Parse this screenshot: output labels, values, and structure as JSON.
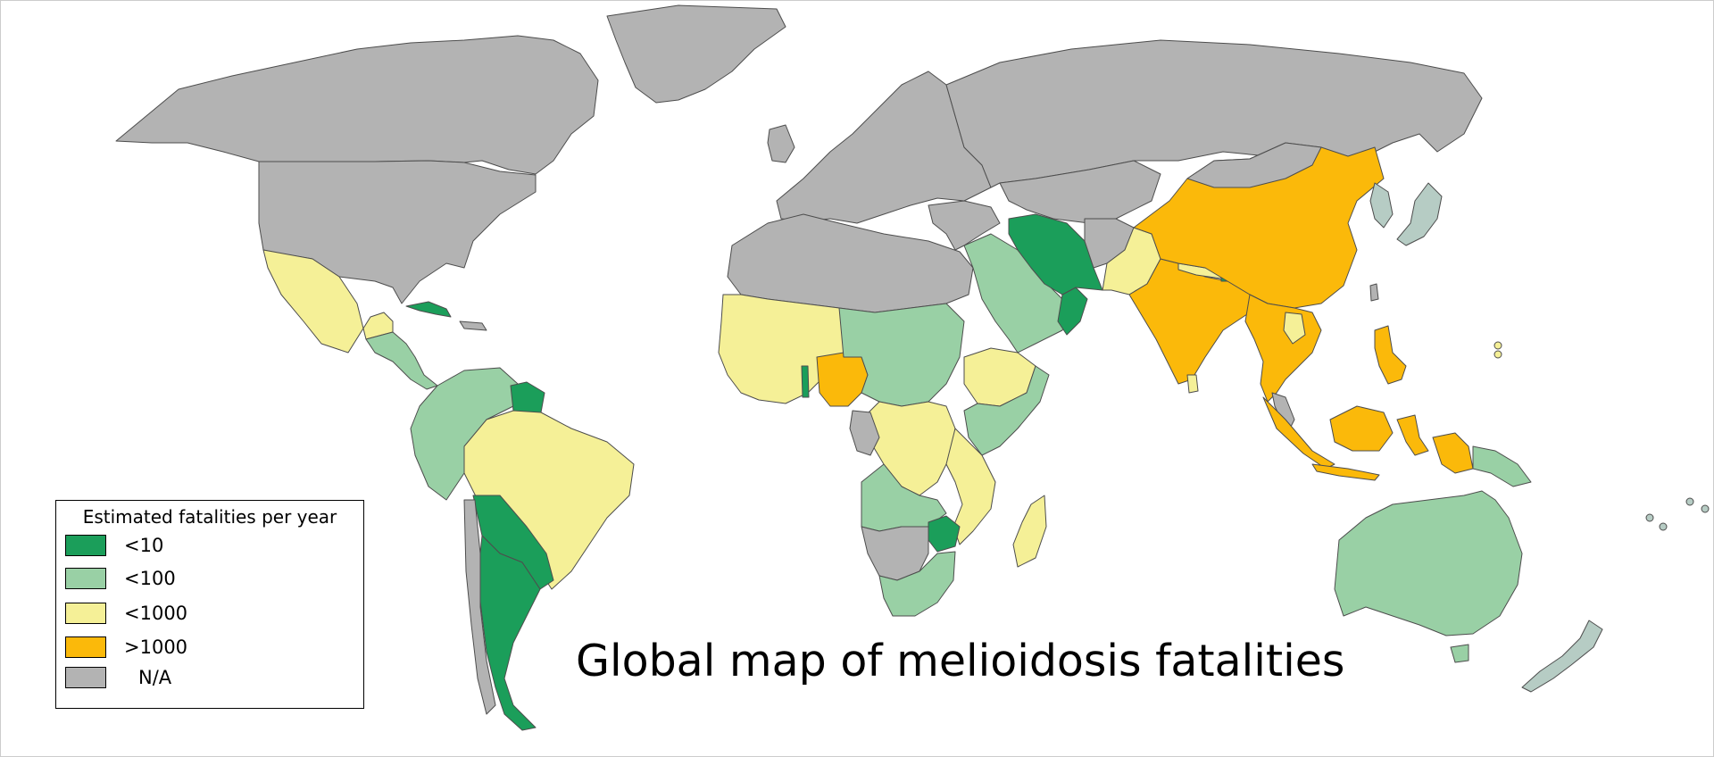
{
  "map": {
    "title": "Global map of melioidosis fatalities",
    "legend": {
      "title": "Estimated fatalities per year",
      "items": [
        {
          "label": "<10",
          "color": "#1b9e5a",
          "category": "lt10"
        },
        {
          "label": "<100",
          "color": "#99d0a5",
          "category": "lt100"
        },
        {
          "label": "<1000",
          "color": "#f5f097",
          "category": "lt1000"
        },
        {
          "label": ">1000",
          "color": "#fbb90a",
          "category": "gt1000"
        },
        {
          "label": "N/A",
          "color": "#b3b3b3",
          "category": "na"
        }
      ]
    },
    "colors": {
      "background": "#ffffff",
      "border": "#4d4d4d",
      "na": "#b3b3b3",
      "minor_region": "#b6ccc4"
    },
    "regions": [
      {
        "name": "Greenland",
        "category": "na"
      },
      {
        "name": "Canada",
        "category": "na"
      },
      {
        "name": "United States",
        "category": "na"
      },
      {
        "name": "Mexico",
        "category": "lt1000"
      },
      {
        "name": "Central America",
        "category": "lt100"
      },
      {
        "name": "Cuba",
        "category": "lt10"
      },
      {
        "name": "Colombia / Venezuela / Ecuador / Peru",
        "category": "lt100"
      },
      {
        "name": "Guyana / Suriname / French Guiana",
        "category": "lt10"
      },
      {
        "name": "Brazil",
        "category": "lt1000"
      },
      {
        "name": "Bolivia / Paraguay / Uruguay",
        "category": "lt10"
      },
      {
        "name": "Argentina",
        "category": "lt10"
      },
      {
        "name": "Chile",
        "category": "na"
      },
      {
        "name": "Europe",
        "category": "na"
      },
      {
        "name": "Russia",
        "category": "na"
      },
      {
        "name": "North Africa",
        "category": "na"
      },
      {
        "name": "West Africa",
        "category": "lt1000"
      },
      {
        "name": "Nigeria",
        "category": "gt1000"
      },
      {
        "name": "Togo",
        "category": "lt10"
      },
      {
        "name": "Sudan / Central Africa",
        "category": "lt100"
      },
      {
        "name": "Ethiopia",
        "category": "lt1000"
      },
      {
        "name": "DR Congo",
        "category": "lt1000"
      },
      {
        "name": "East Africa",
        "category": "lt100"
      },
      {
        "name": "Angola / Zambia",
        "category": "lt100"
      },
      {
        "name": "Zimbabwe",
        "category": "lt10"
      },
      {
        "name": "Mozambique",
        "category": "lt1000"
      },
      {
        "name": "Namibia / Botswana",
        "category": "na"
      },
      {
        "name": "South Africa",
        "category": "lt100"
      },
      {
        "name": "Madagascar",
        "category": "lt1000"
      },
      {
        "name": "Arabian Peninsula",
        "category": "lt100"
      },
      {
        "name": "Iran",
        "category": "lt10"
      },
      {
        "name": "Oman",
        "category": "lt10"
      },
      {
        "name": "Pakistan",
        "category": "lt1000"
      },
      {
        "name": "India",
        "category": "gt1000"
      },
      {
        "name": "China",
        "category": "gt1000"
      },
      {
        "name": "Nepal",
        "category": "lt1000"
      },
      {
        "name": "Bhutan",
        "category": "lt10"
      },
      {
        "name": "Sri Lanka",
        "category": "lt1000"
      },
      {
        "name": "Southeast Asia mainland",
        "category": "gt1000"
      },
      {
        "name": "Laos",
        "category": "lt1000"
      },
      {
        "name": "Indonesia",
        "category": "gt1000"
      },
      {
        "name": "Philippines",
        "category": "gt1000"
      },
      {
        "name": "Papua New Guinea",
        "category": "lt100"
      },
      {
        "name": "Australia",
        "category": "lt100"
      },
      {
        "name": "Japan",
        "category": "minor"
      },
      {
        "name": "Korea",
        "category": "minor"
      },
      {
        "name": "New Zealand",
        "category": "minor"
      },
      {
        "name": "Guam",
        "category": "lt1000"
      },
      {
        "name": "Pacific islands",
        "category": "minor"
      }
    ]
  }
}
